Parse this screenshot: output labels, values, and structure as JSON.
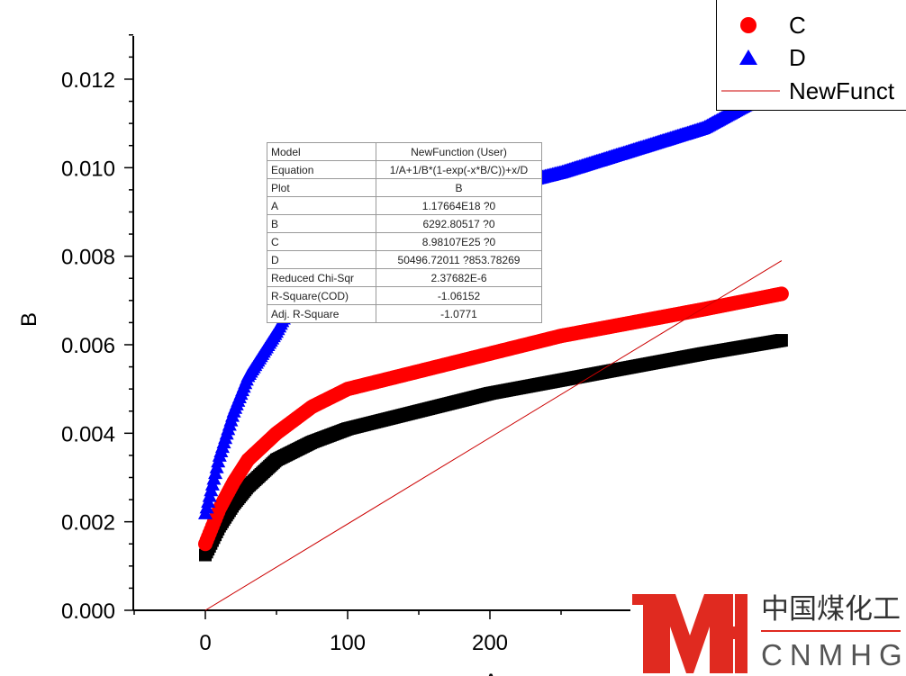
{
  "chart_data": {
    "type": "scatter",
    "xlabel": "A",
    "ylabel": "B",
    "xlim": [
      -50,
      490
    ],
    "ylim": [
      0,
      0.013
    ],
    "xticks": [
      "0",
      "100",
      "200"
    ],
    "xtick_values": [
      0,
      100,
      200
    ],
    "yticks": [
      "0.000",
      "0.002",
      "0.004",
      "0.006",
      "0.008",
      "0.010",
      "0.012"
    ],
    "ytick_values": [
      0,
      0.002,
      0.004,
      0.006,
      0.008,
      0.01,
      0.012
    ],
    "series": [
      {
        "name": "B",
        "marker": "square",
        "color": "#000000",
        "x": [
          0,
          10,
          20,
          30,
          50,
          75,
          100,
          150,
          200,
          250,
          300,
          350,
          405
        ],
        "y": [
          0.00125,
          0.0019,
          0.0024,
          0.0028,
          0.0034,
          0.0038,
          0.0041,
          0.0045,
          0.0049,
          0.0052,
          0.0055,
          0.0058,
          0.0061
        ]
      },
      {
        "name": "C",
        "marker": "circle",
        "color": "#ff0000",
        "x": [
          0,
          10,
          20,
          30,
          50,
          75,
          100,
          150,
          200,
          250,
          300,
          350,
          405
        ],
        "y": [
          0.0015,
          0.0023,
          0.0029,
          0.0034,
          0.004,
          0.0046,
          0.005,
          0.0054,
          0.0058,
          0.0062,
          0.0065,
          0.0068,
          0.00715
        ]
      },
      {
        "name": "D",
        "marker": "triangle",
        "color": "#0000ff",
        "x": [
          0,
          10,
          20,
          30,
          50,
          75,
          100,
          150,
          200,
          250,
          300,
          350,
          390
        ],
        "y": [
          0.0022,
          0.0035,
          0.0045,
          0.0053,
          0.0063,
          0.0078,
          0.0085,
          0.0092,
          0.0095,
          0.0099,
          0.0104,
          0.0109,
          0.0116
        ]
      },
      {
        "name": "NewFunct",
        "marker": "line",
        "color": "#cc0000",
        "x": [
          0,
          405
        ],
        "y": [
          0,
          0.0079
        ]
      }
    ],
    "legend": {
      "placement": "top-right",
      "entries": [
        "C",
        "D",
        "NewFunct"
      ]
    }
  },
  "fit_table": [
    [
      "Model",
      "NewFunction (User)"
    ],
    [
      "Equation",
      "1/A+1/B*(1-exp(-x*B/C))+x/D"
    ],
    [
      "Plot",
      "B"
    ],
    [
      "A",
      "1.17664E18 ?0"
    ],
    [
      "B",
      "6292.80517 ?0"
    ],
    [
      "C",
      "8.98107E25 ?0"
    ],
    [
      "D",
      "50496.72011 ?853.78269"
    ],
    [
      "Reduced Chi-Sqr",
      "2.37682E-6"
    ],
    [
      "R-Square(COD)",
      "-1.06152"
    ],
    [
      "Adj. R-Square",
      "-1.0771"
    ]
  ],
  "watermark": {
    "logo": "MH",
    "cn": "中国煤化工",
    "en": "CNMHG"
  }
}
